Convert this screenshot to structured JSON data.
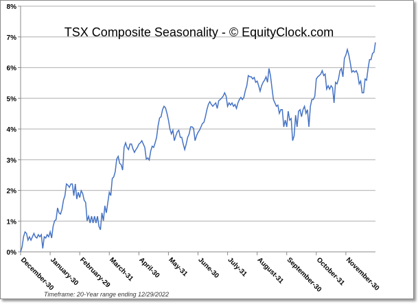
{
  "chart_data": {
    "type": "line",
    "title": "TSX Composite Seasonality - © EquityClock.com",
    "footnote": "Timeframe: 20-Year range ending 12/29/2022",
    "xlabel": "",
    "ylabel": "",
    "ylim": [
      0,
      8
    ],
    "y_ticks": [
      "0%",
      "1%",
      "2%",
      "3%",
      "4%",
      "5%",
      "6%",
      "7%",
      "8%"
    ],
    "x_ticks": [
      "December-30",
      "January-30",
      "February-29",
      "March-31",
      "April-30",
      "May-31",
      "June-30",
      "July-31",
      "August-31",
      "September-30",
      "October-31",
      "November-30"
    ],
    "grid": true,
    "legend": "none",
    "line_color": "#4472C4",
    "series": [
      {
        "name": "TSX Composite Seasonality (%)",
        "values": [
          0,
          0.16,
          0.49,
          0.65,
          0.6,
          0.38,
          0.49,
          0.38,
          0.49,
          0.6,
          0.49,
          0.45,
          0.56,
          0.49,
          0.56,
          0.11,
          0.49,
          0.45,
          0.56,
          0.49,
          0.65,
          0.45,
          0.83,
          1.01,
          1.05,
          1.43,
          1.27,
          1.23,
          1.39,
          1.68,
          1.83,
          2.21,
          2.17,
          2.1,
          2.21,
          2.21,
          1.83,
          2.21,
          1.72,
          1.94,
          1.77,
          1.99,
          1.9,
          1.68,
          1.61,
          1.01,
          1.16,
          0.94,
          1.16,
          0.94,
          1.16,
          0.94,
          1.16,
          0.83,
          0.72,
          1.27,
          1.01,
          1.5,
          1.27,
          1.61,
          1.94,
          1.83,
          2.39,
          2.44,
          2.61,
          3.02,
          3.11,
          2.88,
          2.84,
          2.66,
          3.4,
          3.55,
          3.4,
          3.33,
          3.51,
          3.51,
          3.35,
          3.24,
          3.33,
          3.4,
          3.51,
          3.55,
          3.62,
          3.51,
          3.4,
          3.02,
          3.06,
          2.99,
          3.28,
          3.44,
          3.4,
          3.55,
          3.73,
          4.11,
          4.36,
          4.4,
          4.63,
          4.74,
          4.69,
          4.51,
          4.29,
          4.0,
          3.84,
          3.96,
          3.62,
          3.78,
          3.91,
          3.96,
          3.73,
          3.73,
          3.51,
          3.33,
          3.51,
          3.73,
          3.84,
          4.07,
          4.07,
          4.02,
          3.62,
          3.78,
          3.89,
          3.96,
          4.07,
          4.18,
          4.22,
          4.4,
          4.63,
          4.8,
          4.89,
          4.8,
          4.74,
          4.8,
          4.85,
          4.67,
          4.92,
          4.96,
          5.01,
          5.07,
          5.18,
          5.07,
          4.74,
          4.85,
          4.78,
          4.85,
          4.74,
          4.8,
          4.67,
          4.85,
          4.96,
          5.03,
          4.96,
          5.03,
          5.25,
          5.41,
          5.74,
          5.7,
          5.7,
          5.63,
          5.68,
          5.52,
          5.56,
          5.41,
          5.23,
          5.41,
          5.52,
          5.59,
          5.7,
          5.52,
          5.97,
          5.74,
          5.34,
          4.96,
          4.85,
          4.74,
          4.78,
          4.51,
          4.63,
          4.63,
          4.07,
          4.29,
          4.07,
          4.58,
          4.29,
          4.34,
          3.62,
          3.78,
          4.45,
          4.07,
          4.58,
          4.63,
          4.4,
          4.63,
          4.74,
          4.51,
          4.63,
          4.07,
          4.74,
          4.96,
          4.96,
          5.07,
          5.63,
          5.7,
          5.74,
          5.79,
          5.9,
          5.74,
          5.79,
          5.3,
          5.41,
          5.3,
          5.41,
          5.34,
          4.85,
          5.52,
          5.47,
          5.63,
          5.9,
          5.97,
          5.7,
          6.3,
          6.41,
          6.59,
          6.41,
          6.15,
          5.85,
          5.9,
          5.85,
          5.9,
          5.79,
          5.47,
          5.56,
          5.18,
          5.18,
          5.63,
          5.59,
          5.97,
          6.26,
          6.26,
          6.46,
          6.5,
          6.82
        ]
      }
    ]
  }
}
